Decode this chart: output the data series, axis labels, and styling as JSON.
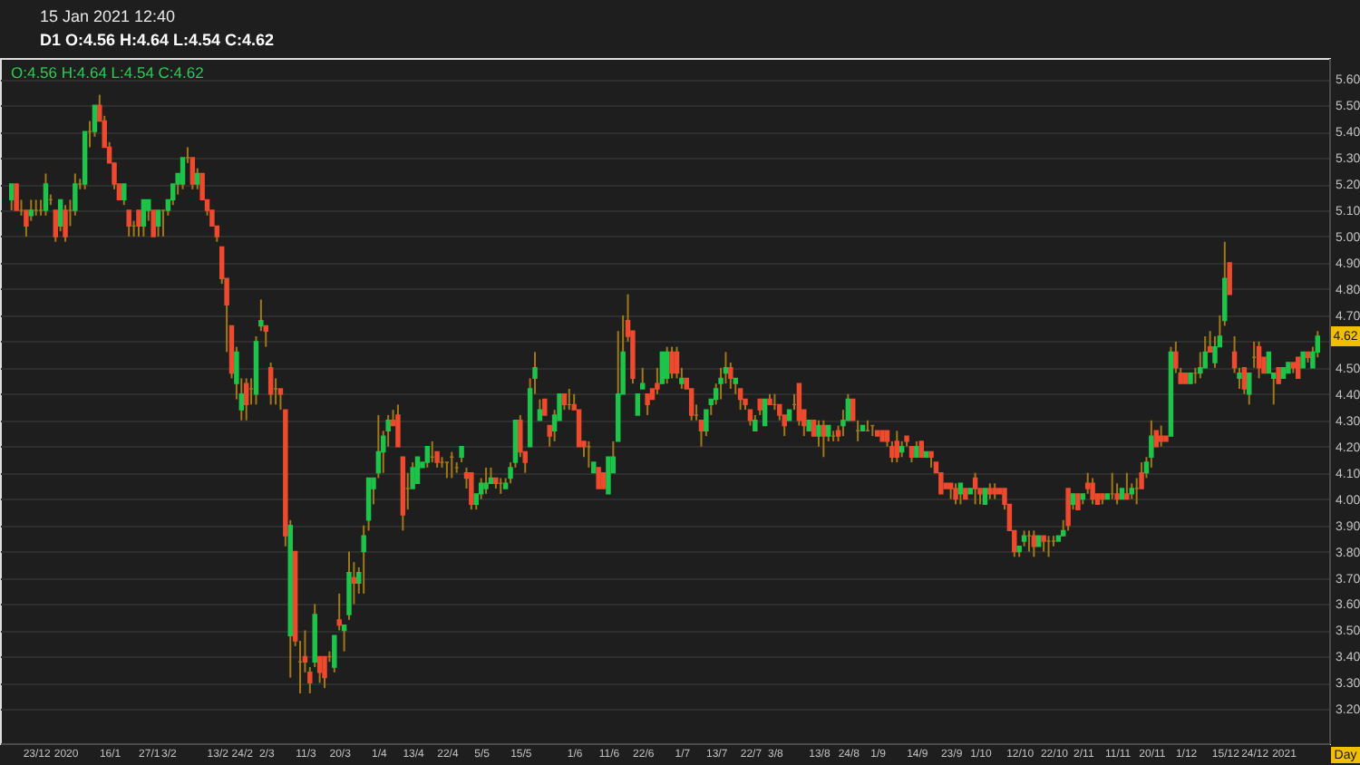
{
  "chart_data": {
    "type": "candlestick",
    "title": "15 Jan 2021 12:40",
    "subtitle": "D1 O:4.56 H:4.64 L:4.54 C:4.62",
    "xlabel": "Day",
    "annotations": [
      "O:4.56 H:4.64 L:4.54 C:4.62",
      {
        "text": "4.62",
        "y": 4.62
      }
    ],
    "categories": [
      null,
      null,
      null,
      null,
      null,
      "23/12",
      null,
      null,
      null,
      null,
      null,
      "2020",
      null,
      null,
      null,
      null,
      null,
      null,
      null,
      null,
      "16/1",
      null,
      null,
      null,
      null,
      null,
      null,
      null,
      "27/1",
      null,
      null,
      null,
      "3/2",
      null,
      null,
      null,
      null,
      null,
      null,
      null,
      null,
      null,
      "13/2",
      null,
      null,
      null,
      null,
      "24/2",
      null,
      null,
      null,
      null,
      "2/3",
      null,
      null,
      null,
      null,
      null,
      null,
      null,
      "11/3",
      null,
      null,
      null,
      null,
      null,
      null,
      "20/3",
      null,
      null,
      null,
      null,
      null,
      null,
      null,
      "1/4",
      null,
      null,
      null,
      null,
      null,
      null,
      "13/4",
      null,
      null,
      null,
      null,
      null,
      null,
      "22/4",
      null,
      null,
      null,
      null,
      null,
      null,
      "5/5",
      null,
      null,
      null,
      null,
      null,
      null,
      null,
      "15/5",
      null,
      null,
      null,
      null,
      null,
      null,
      null,
      null,
      null,
      null,
      "1/6",
      null,
      null,
      null,
      null,
      null,
      null,
      "11/6",
      null,
      null,
      null,
      null,
      null,
      null,
      "22/6",
      null,
      null,
      null,
      null,
      null,
      null,
      null,
      "1/7",
      null,
      null,
      null,
      null,
      null,
      null,
      "13/7",
      null,
      null,
      null,
      null,
      null,
      null,
      "22/7",
      null,
      null,
      null,
      null,
      "3/8",
      null,
      null,
      null,
      null,
      null,
      null,
      null,
      null,
      "13/8",
      null,
      null,
      null,
      null,
      null,
      "24/8",
      null,
      null,
      null,
      null,
      null,
      "1/9",
      null,
      null,
      null,
      null,
      null,
      null,
      null,
      "14/9",
      null,
      null,
      null,
      null,
      null,
      null,
      "23/9",
      null,
      null,
      null,
      null,
      null,
      "1/10",
      null,
      null,
      null,
      null,
      null,
      null,
      null,
      "12/10",
      null,
      null,
      null,
      null,
      null,
      null,
      "22/10",
      null,
      null,
      null,
      null,
      null,
      "2/11",
      null,
      null,
      null,
      null,
      null,
      null,
      "11/11",
      null,
      null,
      null,
      null,
      null,
      null,
      "20/11",
      null,
      null,
      null,
      null,
      null,
      null,
      "1/12",
      null,
      null,
      null,
      null,
      null,
      null,
      null,
      "15/12",
      null,
      null,
      null,
      null,
      null,
      "24/12",
      null,
      null,
      null,
      null,
      null,
      "2021",
      null,
      null,
      null,
      null,
      null,
      null,
      null
    ],
    "ohlc": [
      [
        5.14,
        5.2,
        5.1,
        5.2
      ],
      [
        5.2,
        5.2,
        5.1,
        5.1
      ],
      [
        5.1,
        5.14,
        5.08,
        5.1
      ],
      [
        5.1,
        5.1,
        5.0,
        5.04
      ],
      [
        5.08,
        5.14,
        5.06,
        5.1
      ],
      [
        5.1,
        5.14,
        5.08,
        5.1
      ],
      [
        5.1,
        5.14,
        5.08,
        5.1
      ],
      [
        5.1,
        5.24,
        5.08,
        5.2
      ],
      [
        5.14,
        5.16,
        5.12,
        5.14
      ],
      [
        5.1,
        5.1,
        4.98,
        5.0
      ],
      [
        5.04,
        5.14,
        5.02,
        5.14
      ],
      [
        5.1,
        5.12,
        4.98,
        5.0
      ],
      [
        5.1,
        5.14,
        5.04,
        5.1
      ],
      [
        5.1,
        5.24,
        5.08,
        5.2
      ],
      [
        5.2,
        5.22,
        5.18,
        5.2
      ],
      [
        5.2,
        5.4,
        5.18,
        5.4
      ],
      [
        5.4,
        5.44,
        5.34,
        5.4
      ],
      [
        5.4,
        5.5,
        5.38,
        5.5
      ],
      [
        5.5,
        5.54,
        5.44,
        5.44
      ],
      [
        5.44,
        5.46,
        5.34,
        5.34
      ],
      [
        5.34,
        5.36,
        5.28,
        5.28
      ],
      [
        5.28,
        5.28,
        5.18,
        5.2
      ],
      [
        5.2,
        5.2,
        5.14,
        5.14
      ],
      [
        5.14,
        5.2,
        5.12,
        5.2
      ],
      [
        5.1,
        5.1,
        5.0,
        5.04
      ],
      [
        5.04,
        5.06,
        5.0,
        5.04
      ],
      [
        5.1,
        5.1,
        5.0,
        5.04
      ],
      [
        5.04,
        5.14,
        5.0,
        5.14
      ],
      [
        5.1,
        5.14,
        5.06,
        5.14
      ],
      [
        5.1,
        5.1,
        5.0,
        5.0
      ],
      [
        5.04,
        5.1,
        5.0,
        5.1
      ],
      [
        5.1,
        5.1,
        5.0,
        5.1
      ],
      [
        5.1,
        5.14,
        5.08,
        5.14
      ],
      [
        5.14,
        5.2,
        5.12,
        5.2
      ],
      [
        5.2,
        5.24,
        5.16,
        5.24
      ],
      [
        5.2,
        5.3,
        5.18,
        5.3
      ],
      [
        5.3,
        5.34,
        5.28,
        5.3
      ],
      [
        5.3,
        5.3,
        5.18,
        5.2
      ],
      [
        5.2,
        5.26,
        5.18,
        5.24
      ],
      [
        5.24,
        5.24,
        5.14,
        5.14
      ],
      [
        5.14,
        5.14,
        5.08,
        5.1
      ],
      [
        5.1,
        5.1,
        5.04,
        5.04
      ],
      [
        5.04,
        5.04,
        4.98,
        5.0
      ],
      [
        4.96,
        4.96,
        4.82,
        4.84
      ],
      [
        4.84,
        4.84,
        4.56,
        4.74
      ],
      [
        4.66,
        4.66,
        4.46,
        4.48
      ],
      [
        4.44,
        4.58,
        4.38,
        4.56
      ],
      [
        4.34,
        4.46,
        4.3,
        4.4
      ],
      [
        4.44,
        4.46,
        4.3,
        4.36
      ],
      [
        4.42,
        4.46,
        4.36,
        4.42
      ],
      [
        4.4,
        4.62,
        4.36,
        4.6
      ],
      [
        4.66,
        4.76,
        4.64,
        4.68
      ],
      [
        4.66,
        4.66,
        4.58,
        4.64
      ],
      [
        4.5,
        4.52,
        4.36,
        4.4
      ],
      [
        4.42,
        4.46,
        4.36,
        4.42
      ],
      [
        4.42,
        4.42,
        4.34,
        4.4
      ],
      [
        4.34,
        4.34,
        3.82,
        3.86
      ],
      [
        3.48,
        3.92,
        3.32,
        3.9
      ],
      [
        3.8,
        3.8,
        3.44,
        3.46
      ],
      [
        3.38,
        3.46,
        3.26,
        3.38
      ],
      [
        3.4,
        3.5,
        3.34,
        3.38
      ],
      [
        3.34,
        3.36,
        3.26,
        3.3
      ],
      [
        3.38,
        3.6,
        3.36,
        3.56
      ],
      [
        3.4,
        3.4,
        3.3,
        3.34
      ],
      [
        3.4,
        3.4,
        3.28,
        3.32
      ],
      [
        3.4,
        3.42,
        3.38,
        3.4
      ],
      [
        3.36,
        3.48,
        3.34,
        3.48
      ],
      [
        3.54,
        3.64,
        3.5,
        3.52
      ],
      [
        3.5,
        3.52,
        3.42,
        3.52
      ],
      [
        3.56,
        3.8,
        3.54,
        3.72
      ],
      [
        3.7,
        3.76,
        3.6,
        3.68
      ],
      [
        3.68,
        3.74,
        3.64,
        3.72
      ],
      [
        3.8,
        3.9,
        3.64,
        3.86
      ],
      [
        3.92,
        4.08,
        3.88,
        4.08
      ],
      [
        4.04,
        4.08,
        3.98,
        4.08
      ],
      [
        4.1,
        4.32,
        4.08,
        4.18
      ],
      [
        4.18,
        4.26,
        4.1,
        4.24
      ],
      [
        4.26,
        4.32,
        4.2,
        4.3
      ],
      [
        4.3,
        4.34,
        4.28,
        4.28
      ],
      [
        4.32,
        4.36,
        4.2,
        4.2
      ],
      [
        4.16,
        4.16,
        3.88,
        3.94
      ],
      [
        4.04,
        4.1,
        3.96,
        4.04
      ],
      [
        4.04,
        4.14,
        4.04,
        4.12
      ],
      [
        4.06,
        4.16,
        4.06,
        4.16
      ],
      [
        4.12,
        4.14,
        4.12,
        4.14
      ],
      [
        4.14,
        4.2,
        4.12,
        4.2
      ],
      [
        4.16,
        4.22,
        4.14,
        4.16
      ],
      [
        4.18,
        4.18,
        4.12,
        4.14
      ],
      [
        4.14,
        4.16,
        4.12,
        4.14
      ],
      [
        4.14,
        4.14,
        4.08,
        4.14
      ],
      [
        4.16,
        4.18,
        4.08,
        4.16
      ],
      [
        4.12,
        4.14,
        4.1,
        4.12
      ],
      [
        4.16,
        4.2,
        4.14,
        4.2
      ],
      [
        4.1,
        4.12,
        4.04,
        4.08
      ],
      [
        4.1,
        4.1,
        3.96,
        3.98
      ],
      [
        3.98,
        4.02,
        3.96,
        4.02
      ],
      [
        4.02,
        4.08,
        4.0,
        4.06
      ],
      [
        4.04,
        4.12,
        4.02,
        4.06
      ],
      [
        4.06,
        4.12,
        4.06,
        4.08
      ],
      [
        4.08,
        4.08,
        4.04,
        4.06
      ],
      [
        4.06,
        4.08,
        4.02,
        4.06
      ],
      [
        4.04,
        4.08,
        4.04,
        4.06
      ],
      [
        4.08,
        4.14,
        4.06,
        4.12
      ],
      [
        4.14,
        4.3,
        4.12,
        4.3
      ],
      [
        4.3,
        4.32,
        4.16,
        4.18
      ],
      [
        4.18,
        4.18,
        4.1,
        4.14
      ],
      [
        4.2,
        4.46,
        4.2,
        4.42
      ],
      [
        4.46,
        4.56,
        4.4,
        4.5
      ],
      [
        4.3,
        4.38,
        4.3,
        4.34
      ],
      [
        4.38,
        4.38,
        4.32,
        4.32
      ],
      [
        4.28,
        4.28,
        4.2,
        4.24
      ],
      [
        4.26,
        4.34,
        4.22,
        4.32
      ],
      [
        4.3,
        4.4,
        4.3,
        4.4
      ],
      [
        4.4,
        4.4,
        4.34,
        4.36
      ],
      [
        4.36,
        4.42,
        4.34,
        4.36
      ],
      [
        4.36,
        4.4,
        4.34,
        4.34
      ],
      [
        4.34,
        4.34,
        4.2,
        4.2
      ],
      [
        4.22,
        4.22,
        4.16,
        4.2
      ],
      [
        4.2,
        4.22,
        4.12,
        4.2
      ],
      [
        4.1,
        4.14,
        4.1,
        4.14
      ],
      [
        4.12,
        4.12,
        4.04,
        4.04
      ],
      [
        4.1,
        4.1,
        4.04,
        4.04
      ],
      [
        4.02,
        4.16,
        4.02,
        4.16
      ],
      [
        4.1,
        4.22,
        4.1,
        4.16
      ],
      [
        4.22,
        4.64,
        4.22,
        4.4
      ],
      [
        4.4,
        4.7,
        4.4,
        4.56
      ],
      [
        4.68,
        4.78,
        4.6,
        4.62
      ],
      [
        4.64,
        4.64,
        4.44,
        4.46
      ],
      [
        4.32,
        4.4,
        4.32,
        4.4
      ],
      [
        4.42,
        4.5,
        4.42,
        4.44
      ],
      [
        4.4,
        4.4,
        4.32,
        4.36
      ],
      [
        4.42,
        4.42,
        4.38,
        4.38
      ],
      [
        4.44,
        4.5,
        4.4,
        4.42
      ],
      [
        4.44,
        4.56,
        4.44,
        4.56
      ],
      [
        4.46,
        4.58,
        4.44,
        4.56
      ],
      [
        4.56,
        4.58,
        4.46,
        4.48
      ],
      [
        4.56,
        4.58,
        4.46,
        4.48
      ],
      [
        4.44,
        4.5,
        4.42,
        4.46
      ],
      [
        4.46,
        4.46,
        4.42,
        4.42
      ],
      [
        4.42,
        4.42,
        4.3,
        4.32
      ],
      [
        4.32,
        4.36,
        4.3,
        4.32
      ],
      [
        4.3,
        4.3,
        4.2,
        4.26
      ],
      [
        4.26,
        4.34,
        4.24,
        4.34
      ],
      [
        4.36,
        4.38,
        4.32,
        4.38
      ],
      [
        4.38,
        4.44,
        4.36,
        4.42
      ],
      [
        4.44,
        4.5,
        4.38,
        4.46
      ],
      [
        4.48,
        4.56,
        4.44,
        4.5
      ],
      [
        4.5,
        4.52,
        4.42,
        4.46
      ],
      [
        4.44,
        4.46,
        4.4,
        4.46
      ],
      [
        4.42,
        4.42,
        4.34,
        4.38
      ],
      [
        4.38,
        4.38,
        4.34,
        4.36
      ],
      [
        4.34,
        4.34,
        4.28,
        4.3
      ],
      [
        4.26,
        4.32,
        4.26,
        4.3
      ],
      [
        4.38,
        4.38,
        4.32,
        4.34
      ],
      [
        4.28,
        4.38,
        4.28,
        4.38
      ],
      [
        4.38,
        4.4,
        4.36,
        4.36
      ],
      [
        4.36,
        4.4,
        4.34,
        4.36
      ],
      [
        4.36,
        4.36,
        4.3,
        4.32
      ],
      [
        4.32,
        4.32,
        4.24,
        4.28
      ],
      [
        4.3,
        4.34,
        4.3,
        4.34
      ],
      [
        4.36,
        4.4,
        4.34,
        4.36
      ],
      [
        4.44,
        4.44,
        4.28,
        4.3
      ],
      [
        4.34,
        4.34,
        4.24,
        4.28
      ],
      [
        4.26,
        4.3,
        4.26,
        4.3
      ],
      [
        4.3,
        4.3,
        4.24,
        4.24
      ],
      [
        4.24,
        4.3,
        4.2,
        4.28
      ],
      [
        4.28,
        4.3,
        4.16,
        4.24
      ],
      [
        4.24,
        4.28,
        4.22,
        4.28
      ],
      [
        4.24,
        4.26,
        4.22,
        4.24
      ],
      [
        4.26,
        4.28,
        4.22,
        4.24
      ],
      [
        4.28,
        4.34,
        4.24,
        4.3
      ],
      [
        4.3,
        4.4,
        4.3,
        4.38
      ],
      [
        4.38,
        4.38,
        4.3,
        4.3
      ],
      [
        4.26,
        4.3,
        4.22,
        4.26
      ],
      [
        4.26,
        4.28,
        4.26,
        4.28
      ],
      [
        4.26,
        4.3,
        4.26,
        4.26
      ],
      [
        4.28,
        4.28,
        4.24,
        4.28
      ],
      [
        4.26,
        4.26,
        4.24,
        4.24
      ],
      [
        4.26,
        4.26,
        4.22,
        4.22
      ],
      [
        4.26,
        4.26,
        4.2,
        4.22
      ],
      [
        4.2,
        4.22,
        4.14,
        4.16
      ],
      [
        4.22,
        4.26,
        4.14,
        4.16
      ],
      [
        4.18,
        4.22,
        4.16,
        4.2
      ],
      [
        4.24,
        4.24,
        4.2,
        4.22
      ],
      [
        4.2,
        4.2,
        4.14,
        4.16
      ],
      [
        4.16,
        4.22,
        4.16,
        4.2
      ],
      [
        4.22,
        4.22,
        4.16,
        4.16
      ],
      [
        4.16,
        4.18,
        4.16,
        4.18
      ],
      [
        4.18,
        4.18,
        4.12,
        4.16
      ],
      [
        4.14,
        4.14,
        4.1,
        4.1
      ],
      [
        4.1,
        4.1,
        4.02,
        4.02
      ],
      [
        4.06,
        4.06,
        4.04,
        4.04
      ],
      [
        4.06,
        4.06,
        4.0,
        4.04
      ],
      [
        4.04,
        4.06,
        3.98,
        4.0
      ],
      [
        4.02,
        4.06,
        3.98,
        4.06
      ],
      [
        4.04,
        4.04,
        4.0,
        4.0
      ],
      [
        4.02,
        4.04,
        4.02,
        4.04
      ],
      [
        4.08,
        4.1,
        3.98,
        4.04
      ],
      [
        4.04,
        4.04,
        3.98,
        4.02
      ],
      [
        3.98,
        4.04,
        3.98,
        4.04
      ],
      [
        4.04,
        4.06,
        4.0,
        4.02
      ],
      [
        4.04,
        4.06,
        4.0,
        4.02
      ],
      [
        4.04,
        4.04,
        4.02,
        4.02
      ],
      [
        4.04,
        4.04,
        3.96,
        3.98
      ],
      [
        3.98,
        3.98,
        3.88,
        3.88
      ],
      [
        3.88,
        3.88,
        3.78,
        3.8
      ],
      [
        3.8,
        3.82,
        3.78,
        3.82
      ],
      [
        3.84,
        3.88,
        3.82,
        3.86
      ],
      [
        3.86,
        3.88,
        3.8,
        3.86
      ],
      [
        3.86,
        3.88,
        3.78,
        3.82
      ],
      [
        3.82,
        3.86,
        3.82,
        3.86
      ],
      [
        3.86,
        3.86,
        3.8,
        3.84
      ],
      [
        3.84,
        3.86,
        3.78,
        3.84
      ],
      [
        3.84,
        3.86,
        3.82,
        3.84
      ],
      [
        3.84,
        3.86,
        3.84,
        3.86
      ],
      [
        3.86,
        3.92,
        3.86,
        3.88
      ],
      [
        4.04,
        4.04,
        3.88,
        3.9
      ],
      [
        3.98,
        4.02,
        3.96,
        4.02
      ],
      [
        4.02,
        4.02,
        3.96,
        3.96
      ],
      [
        4.0,
        4.02,
        3.98,
        4.02
      ],
      [
        4.06,
        4.1,
        4.02,
        4.04
      ],
      [
        4.06,
        4.08,
        3.98,
        4.0
      ],
      [
        4.02,
        4.02,
        3.98,
        3.98
      ],
      [
        4.02,
        4.02,
        3.98,
        4.0
      ],
      [
        4.0,
        4.02,
        4.0,
        4.02
      ],
      [
        4.02,
        4.1,
        4.0,
        4.02
      ],
      [
        4.02,
        4.06,
        3.98,
        4.0
      ],
      [
        4.0,
        4.04,
        4.0,
        4.04
      ],
      [
        4.02,
        4.1,
        4.0,
        4.0
      ],
      [
        4.02,
        4.06,
        4.0,
        4.04
      ],
      [
        4.04,
        4.08,
        3.98,
        4.04
      ],
      [
        4.1,
        4.14,
        4.04,
        4.04
      ],
      [
        4.1,
        4.16,
        4.08,
        4.14
      ],
      [
        4.16,
        4.3,
        4.12,
        4.24
      ],
      [
        4.26,
        4.26,
        4.2,
        4.2
      ],
      [
        4.24,
        4.28,
        4.2,
        4.22
      ],
      [
        4.24,
        4.24,
        4.22,
        4.22
      ],
      [
        4.24,
        4.58,
        4.24,
        4.56
      ],
      [
        4.56,
        4.6,
        4.48,
        4.5
      ],
      [
        4.48,
        4.5,
        4.44,
        4.44
      ],
      [
        4.48,
        4.48,
        4.44,
        4.44
      ],
      [
        4.44,
        4.48,
        4.44,
        4.48
      ],
      [
        4.48,
        4.5,
        4.44,
        4.48
      ],
      [
        4.48,
        4.56,
        4.46,
        4.5
      ],
      [
        4.5,
        4.62,
        4.5,
        4.56
      ],
      [
        4.58,
        4.64,
        4.56,
        4.56
      ],
      [
        4.52,
        4.62,
        4.5,
        4.58
      ],
      [
        4.58,
        4.7,
        4.58,
        4.62
      ],
      [
        4.68,
        4.98,
        4.66,
        4.84
      ],
      [
        4.9,
        4.9,
        4.78,
        4.78
      ],
      [
        4.56,
        4.62,
        4.48,
        4.5
      ],
      [
        4.46,
        4.5,
        4.42,
        4.48
      ],
      [
        4.5,
        4.5,
        4.4,
        4.42
      ],
      [
        4.4,
        4.48,
        4.36,
        4.48
      ],
      [
        4.54,
        4.6,
        4.5,
        4.54
      ],
      [
        4.58,
        4.6,
        4.46,
        4.5
      ],
      [
        4.54,
        4.54,
        4.48,
        4.48
      ],
      [
        4.48,
        4.56,
        4.48,
        4.56
      ],
      [
        4.46,
        4.48,
        4.36,
        4.48
      ],
      [
        4.5,
        4.5,
        4.44,
        4.44
      ],
      [
        4.46,
        4.5,
        4.46,
        4.5
      ],
      [
        4.48,
        4.52,
        4.48,
        4.52
      ],
      [
        4.52,
        4.52,
        4.48,
        4.5
      ],
      [
        4.54,
        4.54,
        4.46,
        4.46
      ],
      [
        4.5,
        4.56,
        4.5,
        4.56
      ],
      [
        4.56,
        4.56,
        4.52,
        4.54
      ],
      [
        4.5,
        4.58,
        4.5,
        4.56
      ],
      [
        4.56,
        4.64,
        4.54,
        4.62
      ]
    ],
    "color": "#a07818",
    "colors": [
      "#1ec44a",
      "#ee4a2d",
      "#a07818",
      "#ee4a2d",
      "#1ec44a",
      "#a07818",
      "#a07818",
      "#1ec44a",
      "#a07818",
      "#ee4a2d",
      "#1ec44a",
      "#ee4a2d",
      "#a07818",
      "#1ec44a",
      "#a07818",
      "#1ec44a",
      "#a07818",
      "#1ec44a",
      "#ee4a2d",
      "#ee4a2d",
      "#ee4a2d",
      "#ee4a2d",
      "#ee4a2d",
      "#1ec44a",
      "#ee4a2d",
      "#a07818",
      "#ee4a2d",
      "#1ec44a",
      "#1ec44a",
      "#ee4a2d",
      "#1ec44a",
      "#a07818",
      "#1ec44a",
      "#1ec44a",
      "#1ec44a",
      "#1ec44a",
      "#a07818",
      "#ee4a2d",
      "#1ec44a",
      "#ee4a2d",
      "#ee4a2d",
      "#ee4a2d",
      "#ee4a2d",
      "#ee4a2d",
      "#ee4a2d",
      "#ee4a2d",
      "#1ec44a",
      "#1ec44a",
      "#ee4a2d",
      "#a07818",
      "#1ec44a",
      "#1ec44a",
      "#ee4a2d",
      "#ee4a2d",
      "#a07818",
      "#ee4a2d",
      "#ee4a2d",
      "#1ec44a",
      "#ee4a2d",
      "#a07818",
      "#ee4a2d",
      "#ee4a2d",
      "#1ec44a",
      "#ee4a2d",
      "#ee4a2d",
      "#a07818",
      "#1ec44a",
      "#ee4a2d",
      "#1ec44a",
      "#1ec44a",
      "#ee4a2d",
      "#1ec44a",
      "#1ec44a",
      "#1ec44a",
      "#1ec44a",
      "#1ec44a",
      "#1ec44a",
      "#1ec44a",
      "#ee4a2d",
      "#ee4a2d",
      "#ee4a2d",
      "#a07818",
      "#1ec44a",
      "#1ec44a",
      "#1ec44a",
      "#1ec44a",
      "#a07818",
      "#ee4a2d",
      "#a07818",
      "#a07818",
      "#a07818",
      "#a07818",
      "#1ec44a",
      "#ee4a2d",
      "#ee4a2d",
      "#1ec44a",
      "#1ec44a",
      "#1ec44a",
      "#1ec44a",
      "#ee4a2d",
      "#a07818",
      "#1ec44a",
      "#1ec44a",
      "#1ec44a",
      "#ee4a2d",
      "#ee4a2d",
      "#1ec44a",
      "#1ec44a",
      "#1ec44a",
      "#ee4a2d",
      "#ee4a2d",
      "#1ec44a",
      "#1ec44a",
      "#ee4a2d",
      "#a07818",
      "#ee4a2d",
      "#ee4a2d",
      "#ee4a2d",
      "#a07818",
      "#1ec44a",
      "#ee4a2d",
      "#ee4a2d",
      "#1ec44a",
      "#1ec44a",
      "#1ec44a",
      "#1ec44a",
      "#ee4a2d",
      "#ee4a2d",
      "#1ec44a",
      "#1ec44a",
      "#ee4a2d",
      "#ee4a2d",
      "#ee4a2d",
      "#1ec44a",
      "#1ec44a",
      "#ee4a2d",
      "#ee4a2d",
      "#1ec44a",
      "#ee4a2d",
      "#ee4a2d",
      "#a07818",
      "#ee4a2d",
      "#1ec44a",
      "#1ec44a",
      "#1ec44a",
      "#1ec44a",
      "#1ec44a",
      "#ee4a2d",
      "#1ec44a",
      "#ee4a2d",
      "#ee4a2d",
      "#ee4a2d",
      "#1ec44a",
      "#ee4a2d",
      "#1ec44a",
      "#ee4a2d",
      "#a07818",
      "#ee4a2d",
      "#ee4a2d",
      "#1ec44a",
      "#a07818",
      "#ee4a2d",
      "#ee4a2d",
      "#1ec44a",
      "#ee4a2d",
      "#1ec44a",
      "#ee4a2d",
      "#1ec44a",
      "#a07818",
      "#ee4a2d",
      "#1ec44a",
      "#1ec44a",
      "#ee4a2d",
      "#a07818",
      "#1ec44a",
      "#a07818",
      "#a07818",
      "#ee4a2d",
      "#ee4a2d",
      "#ee4a2d",
      "#ee4a2d",
      "#ee4a2d",
      "#1ec44a",
      "#ee4a2d",
      "#ee4a2d",
      "#1ec44a",
      "#ee4a2d",
      "#1ec44a",
      "#ee4a2d",
      "#ee4a2d",
      "#ee4a2d",
      "#ee4a2d",
      "#ee4a2d",
      "#ee4a2d",
      "#1ec44a",
      "#ee4a2d",
      "#1ec44a",
      "#ee4a2d",
      "#ee4a2d",
      "#1ec44a",
      "#ee4a2d",
      "#ee4a2d",
      "#ee4a2d",
      "#ee4a2d",
      "#ee4a2d",
      "#ee4a2d",
      "#1ec44a",
      "#1ec44a",
      "#a07818",
      "#ee4a2d",
      "#1ec44a",
      "#ee4a2d",
      "#a07818",
      "#a07818",
      "#1ec44a",
      "#1ec44a",
      "#ee4a2d",
      "#1ec44a",
      "#ee4a2d",
      "#1ec44a",
      "#ee4a2d",
      "#ee4a2d",
      "#ee4a2d",
      "#ee4a2d",
      "#1ec44a",
      "#a07818",
      "#ee4a2d",
      "#1ec44a",
      "#ee4a2d",
      "#1ec44a",
      "#a07818",
      "#ee4a2d",
      "#1ec44a",
      "#1ec44a",
      "#ee4a2d",
      "#ee4a2d",
      "#ee4a2d",
      "#1ec44a",
      "#ee4a2d",
      "#ee4a2d",
      "#ee4a2d",
      "#1ec44a",
      "#a07818",
      "#1ec44a",
      "#1ec44a",
      "#ee4a2d",
      "#1ec44a",
      "#1ec44a",
      "#1ec44a",
      "#ee4a2d",
      "#ee4a2d",
      "#1ec44a",
      "#ee4a2d",
      "#1ec44a",
      "#a07818",
      "#ee4a2d",
      "#ee4a2d",
      "#1ec44a",
      "#1ec44a",
      "#ee4a2d",
      "#1ec44a",
      "#1ec44a",
      "#ee4a2d",
      "#ee4a2d",
      "#1ec44a",
      "#ee4a2d",
      "#1ec44a",
      "#1ec44a"
    ],
    "ylim": [
      3.07,
      5.68
    ],
    "yticks": [
      {
        "value": 3.2,
        "label": "3.20"
      },
      {
        "value": 3.3,
        "label": "3.30"
      },
      {
        "value": 3.4,
        "label": "3.40"
      },
      {
        "value": 3.5,
        "label": "3.50"
      },
      {
        "value": 3.6,
        "label": "3.60"
      },
      {
        "value": 3.7,
        "label": "3.70"
      },
      {
        "value": 3.8,
        "label": "3.80"
      },
      {
        "value": 3.9,
        "label": "3.90"
      },
      {
        "value": 4.0,
        "label": "4.00"
      },
      {
        "value": 4.1,
        "label": "4.10"
      },
      {
        "value": 4.2,
        "label": "4.20"
      },
      {
        "value": 4.3,
        "label": "4.30"
      },
      {
        "value": 4.4,
        "label": "4.40"
      },
      {
        "value": 4.5,
        "label": "4.50"
      },
      {
        "value": 4.6,
        "label": null
      },
      {
        "value": 4.7,
        "label": "4.70"
      },
      {
        "value": 4.8,
        "label": "4.80"
      },
      {
        "value": 4.9,
        "label": "4.90"
      },
      {
        "value": 5.0,
        "label": "5.00"
      },
      {
        "value": 5.1,
        "label": "5.10"
      },
      {
        "value": 5.2,
        "label": "5.20"
      },
      {
        "value": 5.3,
        "label": "5.30"
      },
      {
        "value": 5.4,
        "label": "5.40"
      },
      {
        "value": 5.5,
        "label": "5.50"
      },
      {
        "value": 5.6,
        "label": "5.60"
      }
    ],
    "grid": "y"
  }
}
